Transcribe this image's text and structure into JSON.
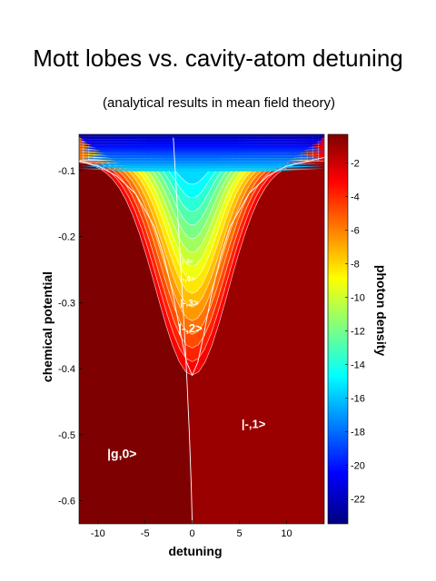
{
  "chart_data": {
    "type": "heatmap",
    "title": "Mott lobes vs. cavity-atom detuning",
    "subtitle": "(analytical results in mean field theory)",
    "xlabel": "detuning",
    "ylabel": "chemical potential",
    "colorbar_label": "photon density",
    "xlim": [
      -12,
      14
    ],
    "ylim": [
      -0.635,
      -0.045
    ],
    "x_ticks": [
      -10,
      -5,
      0,
      5,
      10
    ],
    "x_tick_labels": [
      "-10",
      "-5",
      "0",
      "5",
      "10"
    ],
    "y_ticks": [
      -0.1,
      -0.2,
      -0.3,
      -0.4,
      -0.5,
      -0.6
    ],
    "y_tick_labels": [
      "-0.1",
      "-0.2",
      "-0.3",
      "-0.4",
      "-0.5",
      "-0.6"
    ],
    "colorbar_range": [
      -23.5,
      -0.3
    ],
    "colorbar_ticks": [
      -2,
      -4,
      -6,
      -8,
      -10,
      -12,
      -14,
      -16,
      -18,
      -20,
      -22
    ],
    "colorbar_tick_labels": [
      "-2",
      "-4",
      "-6",
      "-8",
      "-10",
      "-12",
      "-14",
      "-16",
      "-18",
      "-20",
      "-22"
    ],
    "colormap": "jet",
    "region_labels": [
      {
        "text": "|g,0>",
        "x": -9.0,
        "y": -0.535
      },
      {
        "text": "|-,1>",
        "x": 6.5,
        "y": -0.49
      },
      {
        "text": "|-,2>",
        "x": -0.2,
        "y": -0.345
      },
      {
        "text": "|-,3>",
        "x": -0.3,
        "y": -0.305
      },
      {
        "text": "|-,4>",
        "x": -0.5,
        "y": -0.268
      },
      {
        "text": "|-,5>",
        "x": -0.5,
        "y": -0.24
      }
    ],
    "boundary_curves": [
      {
        "name": "g0 / -1 boundary",
        "points": [
          [
            -2.0,
            -0.05
          ],
          [
            -1.6,
            -0.15
          ],
          [
            -1.2,
            -0.25
          ],
          [
            -0.8,
            -0.35
          ],
          [
            -0.55,
            -0.42
          ],
          [
            -0.3,
            -0.5
          ],
          [
            -0.1,
            -0.58
          ],
          [
            0.0,
            -0.635
          ]
        ]
      },
      {
        "name": "lobe -1 outer",
        "points": [
          [
            -12,
            -0.085
          ],
          [
            -10,
            -0.093
          ],
          [
            -8,
            -0.108
          ],
          [
            -6,
            -0.135
          ],
          [
            -4,
            -0.185
          ],
          [
            -3,
            -0.23
          ],
          [
            -2,
            -0.29
          ],
          [
            -1.2,
            -0.35
          ],
          [
            -0.6,
            -0.39
          ],
          [
            0,
            -0.41
          ],
          [
            0.6,
            -0.39
          ],
          [
            1.2,
            -0.35
          ],
          [
            2,
            -0.29
          ],
          [
            3,
            -0.23
          ],
          [
            4,
            -0.185
          ],
          [
            6,
            -0.135
          ],
          [
            8,
            -0.108
          ],
          [
            10,
            -0.093
          ],
          [
            14,
            -0.08
          ]
        ]
      }
    ]
  }
}
